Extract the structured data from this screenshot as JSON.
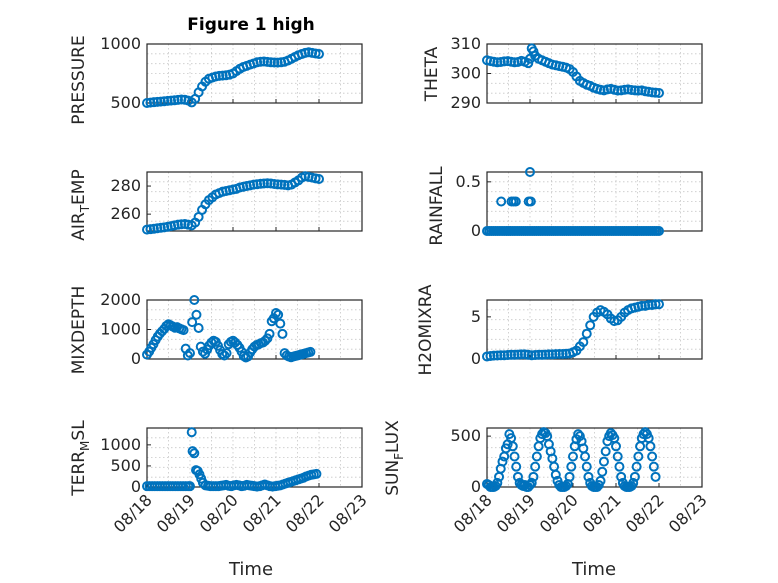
{
  "figure": {
    "title": "Figure 1 high",
    "accent": "#0072BD"
  },
  "chart_data": [
    {
      "type": "scatter",
      "ylabel": "PRESSURE",
      "ylim": [
        500,
        1000
      ],
      "yticks": [
        500,
        1000
      ],
      "x": [
        18.0,
        18.08,
        18.16,
        18.24,
        18.32,
        18.4,
        18.48,
        18.56,
        18.64,
        18.72,
        18.8,
        18.88,
        18.96,
        19.04,
        19.12,
        19.2,
        19.28,
        19.36,
        19.44,
        19.52,
        19.6,
        19.68,
        19.76,
        19.84,
        19.92,
        20.0,
        20.08,
        20.16,
        20.24,
        20.32,
        20.4,
        20.48,
        20.56,
        20.64,
        20.72,
        20.8,
        20.88,
        20.96,
        21.04,
        21.12,
        21.2,
        21.28,
        21.36,
        21.44,
        21.52,
        21.6,
        21.68,
        21.76,
        21.84,
        21.92,
        22.0
      ],
      "y": [
        500,
        503,
        507,
        510,
        512,
        515,
        518,
        520,
        523,
        527,
        530,
        528,
        520,
        505,
        535,
        590,
        640,
        680,
        705,
        715,
        725,
        730,
        732,
        735,
        740,
        750,
        770,
        790,
        805,
        815,
        825,
        835,
        845,
        850,
        852,
        848,
        845,
        843,
        842,
        845,
        850,
        860,
        875,
        890,
        905,
        915,
        925,
        930,
        925,
        920,
        915
      ]
    },
    {
      "type": "scatter",
      "ylabel": "THETA",
      "ylim": [
        290,
        310
      ],
      "yticks": [
        290,
        300,
        310
      ],
      "x": [
        18.0,
        18.08,
        18.16,
        18.24,
        18.32,
        18.4,
        18.48,
        18.56,
        18.64,
        18.72,
        18.8,
        18.88,
        18.96,
        19.0,
        19.04,
        19.08,
        19.12,
        19.2,
        19.28,
        19.36,
        19.44,
        19.52,
        19.6,
        19.68,
        19.76,
        19.84,
        19.92,
        20.0,
        20.08,
        20.16,
        20.24,
        20.32,
        20.4,
        20.48,
        20.56,
        20.64,
        20.72,
        20.8,
        20.88,
        20.96,
        21.04,
        21.12,
        21.2,
        21.28,
        21.36,
        21.44,
        21.52,
        21.6,
        21.68,
        21.76,
        21.84,
        21.92,
        22.0
      ],
      "y": [
        304.5,
        304.2,
        304.0,
        303.8,
        303.9,
        304.1,
        304.2,
        304.0,
        303.8,
        303.9,
        304.3,
        304.0,
        303.5,
        305.0,
        308.5,
        307.5,
        306.0,
        305.0,
        304.5,
        304.0,
        303.5,
        303.0,
        302.8,
        302.5,
        302.3,
        302.0,
        301.5,
        300.5,
        299.0,
        297.5,
        296.8,
        296.2,
        295.8,
        295.2,
        294.8,
        294.5,
        294.3,
        294.6,
        294.8,
        294.5,
        294.2,
        294.3,
        294.5,
        294.6,
        294.4,
        294.3,
        294.2,
        294.3,
        294.0,
        293.8,
        293.6,
        293.5,
        293.4
      ]
    },
    {
      "type": "scatter",
      "ylabel": "AIR_TEMP",
      "ylim": [
        248,
        290
      ],
      "yticks": [
        260,
        280
      ],
      "x": [
        18.0,
        18.08,
        18.16,
        18.24,
        18.32,
        18.4,
        18.48,
        18.56,
        18.64,
        18.72,
        18.8,
        18.88,
        18.96,
        19.04,
        19.12,
        19.2,
        19.28,
        19.36,
        19.44,
        19.52,
        19.6,
        19.68,
        19.76,
        19.84,
        19.92,
        20.0,
        20.08,
        20.16,
        20.24,
        20.32,
        20.4,
        20.48,
        20.56,
        20.64,
        20.72,
        20.8,
        20.88,
        20.96,
        21.04,
        21.12,
        21.2,
        21.28,
        21.36,
        21.44,
        21.52,
        21.6,
        21.68,
        21.76,
        21.84,
        21.92,
        22.0
      ],
      "y": [
        249,
        249.3,
        249.6,
        250,
        250.3,
        250.6,
        251,
        251.5,
        252,
        252.5,
        252.8,
        253,
        252.5,
        252,
        254,
        258,
        263,
        267,
        270,
        272,
        274,
        275,
        276,
        276.5,
        277,
        277.5,
        278,
        279,
        279.5,
        280,
        280.5,
        281,
        281.3,
        281.6,
        281.8,
        282,
        281.8,
        281.5,
        281.2,
        281,
        280.8,
        280.5,
        281,
        282.5,
        284,
        286,
        287,
        286.5,
        286,
        285.5,
        285
      ]
    },
    {
      "type": "scatter",
      "ylabel": "RAINFALL",
      "ylim": [
        0,
        0.6
      ],
      "yticks": [
        0,
        0.5
      ],
      "x": [
        18.0,
        18.05,
        18.1,
        18.15,
        18.2,
        18.25,
        18.3,
        18.35,
        18.4,
        18.45,
        18.5,
        18.55,
        18.6,
        18.65,
        18.7,
        18.75,
        18.8,
        18.85,
        18.9,
        18.95,
        19.0,
        19.05,
        19.1,
        19.15,
        19.2,
        19.25,
        19.3,
        19.35,
        19.4,
        19.45,
        19.5,
        19.55,
        19.6,
        19.65,
        19.7,
        19.75,
        19.8,
        19.85,
        19.9,
        19.95,
        20.0,
        20.05,
        20.1,
        20.15,
        20.2,
        20.25,
        20.3,
        20.35,
        20.4,
        20.45,
        20.5,
        20.55,
        20.6,
        20.65,
        20.7,
        20.75,
        20.8,
        20.85,
        20.9,
        20.95,
        21.0,
        21.05,
        21.1,
        21.15,
        21.2,
        21.25,
        21.3,
        21.35,
        21.4,
        21.45,
        21.5,
        21.55,
        21.6,
        21.65,
        21.7,
        21.75,
        21.8,
        21.85,
        21.9,
        21.95,
        22.0,
        18.33,
        18.57,
        18.62,
        18.67,
        18.97,
        19.02,
        19.0
      ],
      "y": [
        0,
        0,
        0,
        0,
        0,
        0,
        0,
        0,
        0,
        0,
        0,
        0,
        0,
        0,
        0,
        0,
        0,
        0,
        0,
        0,
        0,
        0,
        0,
        0,
        0,
        0,
        0,
        0,
        0,
        0,
        0,
        0,
        0,
        0,
        0,
        0,
        0,
        0,
        0,
        0,
        0,
        0,
        0,
        0,
        0,
        0,
        0,
        0,
        0,
        0,
        0,
        0,
        0,
        0,
        0,
        0,
        0,
        0,
        0,
        0,
        0,
        0,
        0,
        0,
        0,
        0,
        0,
        0,
        0,
        0,
        0,
        0,
        0,
        0,
        0,
        0,
        0,
        0,
        0,
        0,
        0,
        0.3,
        0.3,
        0.3,
        0.3,
        0.3,
        0.3,
        0.6
      ]
    },
    {
      "type": "scatter",
      "ylabel": "MIXDEPTH",
      "ylim": [
        0,
        2000
      ],
      "yticks": [
        0,
        1000,
        2000
      ],
      "x": [
        18.0,
        18.05,
        18.1,
        18.15,
        18.2,
        18.25,
        18.3,
        18.35,
        18.4,
        18.45,
        18.5,
        18.55,
        18.6,
        18.65,
        18.7,
        18.75,
        18.8,
        18.85,
        18.9,
        18.95,
        19.0,
        19.05,
        19.1,
        19.15,
        19.2,
        19.25,
        19.3,
        19.35,
        19.4,
        19.45,
        19.5,
        19.55,
        19.6,
        19.65,
        19.7,
        19.75,
        19.8,
        19.85,
        19.9,
        19.95,
        20.0,
        20.05,
        20.1,
        20.15,
        20.2,
        20.25,
        20.3,
        20.35,
        20.4,
        20.45,
        20.5,
        20.55,
        20.6,
        20.65,
        20.7,
        20.75,
        20.8,
        20.85,
        20.9,
        20.95,
        21.0,
        21.05,
        21.1,
        21.15,
        21.2,
        21.25,
        21.3,
        21.35,
        21.4,
        21.45,
        21.5,
        21.55,
        21.6,
        21.65,
        21.7,
        21.75,
        21.8
      ],
      "y": [
        150,
        250,
        380,
        500,
        640,
        760,
        860,
        940,
        1020,
        1120,
        1180,
        1140,
        1100,
        1060,
        1080,
        1040,
        1010,
        980,
        350,
        120,
        200,
        1250,
        2000,
        1500,
        1050,
        420,
        250,
        180,
        320,
        460,
        560,
        620,
        580,
        450,
        300,
        170,
        120,
        200,
        500,
        580,
        620,
        560,
        480,
        380,
        250,
        100,
        50,
        90,
        220,
        330,
        420,
        470,
        500,
        540,
        560,
        620,
        700,
        850,
        1280,
        1380,
        1560,
        1500,
        1200,
        850,
        200,
        120,
        80,
        60,
        80,
        100,
        120,
        140,
        160,
        180,
        200,
        220,
        240
      ]
    },
    {
      "type": "scatter",
      "ylabel": "H2OMIXRA",
      "ylim": [
        0,
        7
      ],
      "yticks": [
        0,
        5
      ],
      "x": [
        18.0,
        18.08,
        18.16,
        18.24,
        18.32,
        18.4,
        18.48,
        18.56,
        18.64,
        18.72,
        18.8,
        18.88,
        18.96,
        19.04,
        19.12,
        19.2,
        19.28,
        19.36,
        19.44,
        19.52,
        19.6,
        19.68,
        19.76,
        19.84,
        19.92,
        20.0,
        20.08,
        20.16,
        20.24,
        20.32,
        20.4,
        20.48,
        20.56,
        20.64,
        20.72,
        20.8,
        20.88,
        20.96,
        21.04,
        21.12,
        21.2,
        21.28,
        21.36,
        21.44,
        21.52,
        21.6,
        21.68,
        21.76,
        21.84,
        21.92,
        22.0
      ],
      "y": [
        0.3,
        0.35,
        0.4,
        0.42,
        0.45,
        0.45,
        0.48,
        0.5,
        0.5,
        0.52,
        0.55,
        0.55,
        0.5,
        0.45,
        0.48,
        0.5,
        0.5,
        0.52,
        0.55,
        0.55,
        0.58,
        0.6,
        0.6,
        0.62,
        0.65,
        0.8,
        1.0,
        1.5,
        2.0,
        3.0,
        4.0,
        5.0,
        5.5,
        5.8,
        5.6,
        5.3,
        4.8,
        4.5,
        4.6,
        5.0,
        5.5,
        5.8,
        6.0,
        6.1,
        6.2,
        6.3,
        6.3,
        6.4,
        6.4,
        6.5,
        6.5
      ]
    },
    {
      "type": "scatter",
      "ylabel": "TERR_MSL",
      "ylim": [
        0,
        1400
      ],
      "yticks": [
        0,
        500,
        1000
      ],
      "x": [
        18.0,
        18.06,
        18.12,
        18.18,
        18.24,
        18.3,
        18.36,
        18.42,
        18.48,
        18.54,
        18.6,
        18.66,
        18.72,
        18.78,
        18.84,
        18.9,
        18.96,
        19.0,
        19.04,
        19.06,
        19.1,
        19.14,
        19.18,
        19.22,
        19.26,
        19.3,
        19.36,
        19.42,
        19.48,
        19.54,
        19.6,
        19.66,
        19.72,
        19.78,
        19.84,
        19.9,
        19.96,
        20.02,
        20.08,
        20.14,
        20.2,
        20.26,
        20.32,
        20.38,
        20.44,
        20.5,
        20.56,
        20.62,
        20.68,
        20.74,
        20.8,
        20.86,
        20.92,
        20.98,
        21.04,
        21.1,
        21.16,
        21.22,
        21.28,
        21.34,
        21.4,
        21.46,
        21.52,
        21.58,
        21.64,
        21.7,
        21.76,
        21.82,
        21.88,
        21.94
      ],
      "y": [
        20,
        20,
        20,
        20,
        20,
        20,
        20,
        20,
        20,
        20,
        20,
        20,
        20,
        20,
        20,
        20,
        20,
        20,
        1300,
        850,
        800,
        400,
        380,
        300,
        200,
        100,
        40,
        30,
        20,
        20,
        20,
        20,
        30,
        40,
        50,
        30,
        20,
        40,
        50,
        40,
        20,
        30,
        50,
        40,
        30,
        20,
        10,
        20,
        40,
        60,
        40,
        20,
        10,
        20,
        30,
        40,
        60,
        80,
        100,
        120,
        140,
        160,
        180,
        200,
        220,
        250,
        270,
        290,
        300,
        310
      ]
    },
    {
      "type": "scatter",
      "ylabel": "SUN_FLUX",
      "ylim": [
        0,
        580
      ],
      "yticks": [
        0,
        500
      ],
      "x": [
        18.0,
        18.04,
        18.08,
        18.12,
        18.16,
        18.2,
        18.24,
        18.28,
        18.32,
        18.36,
        18.4,
        18.44,
        18.48,
        18.52,
        18.56,
        18.6,
        18.64,
        18.68,
        18.72,
        18.76,
        18.8,
        18.84,
        18.88,
        18.92,
        18.96,
        19.0,
        19.04,
        19.08,
        19.12,
        19.16,
        19.2,
        19.24,
        19.28,
        19.32,
        19.36,
        19.4,
        19.44,
        19.48,
        19.52,
        19.56,
        19.6,
        19.64,
        19.68,
        19.72,
        19.76,
        19.8,
        19.84,
        19.88,
        19.92,
        19.96,
        20.0,
        20.04,
        20.08,
        20.12,
        20.16,
        20.2,
        20.24,
        20.28,
        20.32,
        20.36,
        20.4,
        20.44,
        20.48,
        20.52,
        20.56,
        20.6,
        20.64,
        20.68,
        20.72,
        20.76,
        20.8,
        20.84,
        20.88,
        20.92,
        20.96,
        21.0,
        21.04,
        21.08,
        21.12,
        21.16,
        21.2,
        21.24,
        21.28,
        21.32,
        21.36,
        21.4,
        21.44,
        21.48,
        21.52,
        21.56,
        21.6,
        21.64,
        21.68,
        21.72,
        21.76,
        21.8,
        21.84,
        21.88,
        21.92
      ],
      "y": [
        30,
        20,
        0,
        0,
        0,
        10,
        40,
        100,
        180,
        250,
        300,
        380,
        420,
        520,
        480,
        400,
        300,
        200,
        100,
        40,
        20,
        10,
        20,
        0,
        0,
        20,
        40,
        100,
        200,
        300,
        400,
        480,
        520,
        540,
        530,
        500,
        420,
        350,
        280,
        200,
        120,
        60,
        20,
        0,
        0,
        0,
        10,
        30,
        100,
        200,
        300,
        400,
        470,
        520,
        500,
        450,
        380,
        300,
        200,
        100,
        40,
        10,
        0,
        0,
        0,
        20,
        60,
        150,
        250,
        350,
        450,
        500,
        530,
        510,
        480,
        400,
        300,
        200,
        100,
        40,
        10,
        0,
        0,
        0,
        10,
        40,
        100,
        200,
        300,
        400,
        480,
        520,
        540,
        520,
        480,
        400,
        300,
        200,
        100
      ]
    }
  ],
  "xaxis": {
    "xlim": [
      18,
      23
    ],
    "tick_values": [
      18,
      19,
      20,
      21,
      22,
      23
    ],
    "tick_labels": [
      "08/18",
      "08/19",
      "08/20",
      "08/21",
      "08/22",
      "08/23"
    ],
    "label": "Time"
  },
  "axis_labels": {
    "terr_main": "TERR",
    "terr_sub": "M",
    "terr_sup": "SL",
    "sun_main": "SUN",
    "sun_sub": "F",
    "sun_rest": "LUX",
    "air_main": "AIR",
    "air_sub": "T",
    "air_rest": "EMP"
  }
}
